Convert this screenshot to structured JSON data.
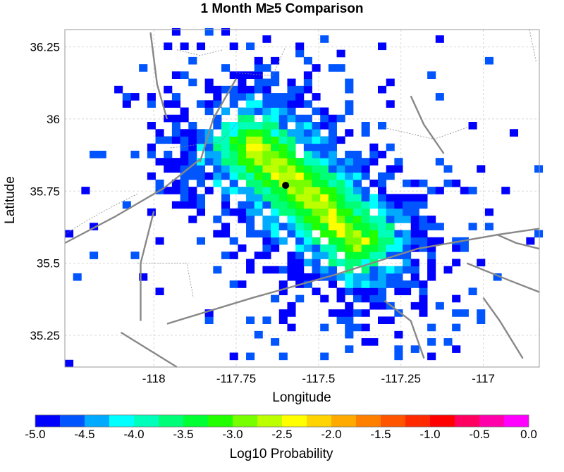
{
  "chart_data": {
    "type": "heatmap",
    "title": "1 Month M≥5 Comparison",
    "xlabel": "Longitude",
    "ylabel": "Latitude",
    "xlim": [
      -118.27,
      -116.83
    ],
    "ylim": [
      35.14,
      36.31
    ],
    "x_ticks": [
      {
        "value": -118,
        "label": "-118"
      },
      {
        "value": -117.75,
        "label": "-117.75"
      },
      {
        "value": -117.5,
        "label": "-117.5"
      },
      {
        "value": -117.25,
        "label": "-117.25"
      },
      {
        "value": -117,
        "label": "-117"
      }
    ],
    "y_ticks": [
      {
        "value": 35.25,
        "label": "35.25"
      },
      {
        "value": 35.5,
        "label": "35.5"
      },
      {
        "value": 35.75,
        "label": "35.75"
      },
      {
        "value": 36,
        "label": "36"
      },
      {
        "value": 36.25,
        "label": "36.25"
      }
    ],
    "grid": true,
    "grid_spacing": 0.025,
    "colorbar": {
      "label": "Log10 Probability",
      "min": -5.0,
      "max": 0.0,
      "colors": [
        "#0000ff",
        "#0055ff",
        "#00aaff",
        "#00ffff",
        "#00ffbb",
        "#00ff77",
        "#00ff33",
        "#22ff00",
        "#77ff00",
        "#bbff00",
        "#ffff00",
        "#ffd400",
        "#ffaa00",
        "#ff7f00",
        "#ff5500",
        "#ff2a00",
        "#ff0000",
        "#ff0060",
        "#ff00aa",
        "#ff00ff"
      ],
      "tick_labels": [
        "-5.0",
        "-4.5",
        "-4.0",
        "-3.5",
        "-3.0",
        "-2.5",
        "-2.0",
        "-1.5",
        "-1.0",
        "-0.5",
        "0.0"
      ]
    },
    "epicenter": {
      "lon": -117.6,
      "lat": 35.77
    },
    "distribution": {
      "fault_start": {
        "lon": -117.7,
        "lat": 35.91
      },
      "fault_end": {
        "lon": -117.38,
        "lat": 35.58
      },
      "peak_value": -2.4,
      "floor_value": -5.0
    },
    "faults": [
      [
        [
          -118.27,
          35.57
        ],
        [
          -118.12,
          35.66
        ],
        [
          -117.97,
          35.76
        ],
        [
          -117.86,
          35.86
        ]
      ],
      [
        [
          -117.96,
          35.29
        ],
        [
          -117.7,
          35.38
        ],
        [
          -117.45,
          35.46
        ],
        [
          -117.2,
          35.55
        ],
        [
          -116.95,
          35.6
        ],
        [
          -116.83,
          35.62
        ]
      ],
      [
        [
          -117.86,
          35.85
        ],
        [
          -117.82,
          36.0
        ],
        [
          -117.75,
          36.14
        ]
      ],
      [
        [
          -118.01,
          36.3
        ],
        [
          -117.99,
          36.12
        ],
        [
          -117.96,
          36.0
        ]
      ],
      [
        [
          -118.0,
          35.68
        ],
        [
          -118.04,
          35.5
        ],
        [
          -118.04,
          35.3
        ]
      ],
      [
        [
          -117.3,
          35.37
        ],
        [
          -117.22,
          35.3
        ],
        [
          -117.18,
          35.17
        ]
      ],
      [
        [
          -117.0,
          35.38
        ],
        [
          -116.95,
          35.3
        ],
        [
          -116.88,
          35.17
        ]
      ],
      [
        [
          -118.1,
          35.26
        ],
        [
          -117.93,
          35.14
        ]
      ],
      [
        [
          -117.22,
          36.08
        ],
        [
          -117.18,
          35.98
        ],
        [
          -117.12,
          35.88
        ]
      ],
      [
        [
          -116.96,
          35.6
        ],
        [
          -116.9,
          35.57
        ],
        [
          -116.83,
          35.55
        ]
      ],
      [
        [
          -117.05,
          35.5
        ],
        [
          -116.92,
          35.44
        ],
        [
          -116.83,
          35.4
        ]
      ]
    ],
    "boundaries": [
      [
        [
          -118.27,
          35.6
        ],
        [
          -118.2,
          35.65
        ],
        [
          -118.12,
          35.7
        ],
        [
          -118.05,
          35.74
        ]
      ],
      [
        [
          -118.05,
          35.5
        ],
        [
          -117.9,
          35.5
        ],
        [
          -117.88,
          35.38
        ]
      ],
      [
        [
          -117.95,
          35.9
        ],
        [
          -117.8,
          35.92
        ],
        [
          -117.72,
          36.02
        ]
      ],
      [
        [
          -117.75,
          36.16
        ],
        [
          -117.64,
          36.15
        ],
        [
          -117.6,
          36.25
        ]
      ],
      [
        [
          -117.3,
          35.97
        ],
        [
          -117.15,
          35.93
        ],
        [
          -117.05,
          35.97
        ]
      ],
      [
        [
          -116.86,
          36.31
        ],
        [
          -116.84,
          36.2
        ]
      ],
      [
        [
          -117.93,
          36.24
        ],
        [
          -117.86,
          36.22
        ],
        [
          -117.79,
          36.24
        ]
      ]
    ]
  }
}
